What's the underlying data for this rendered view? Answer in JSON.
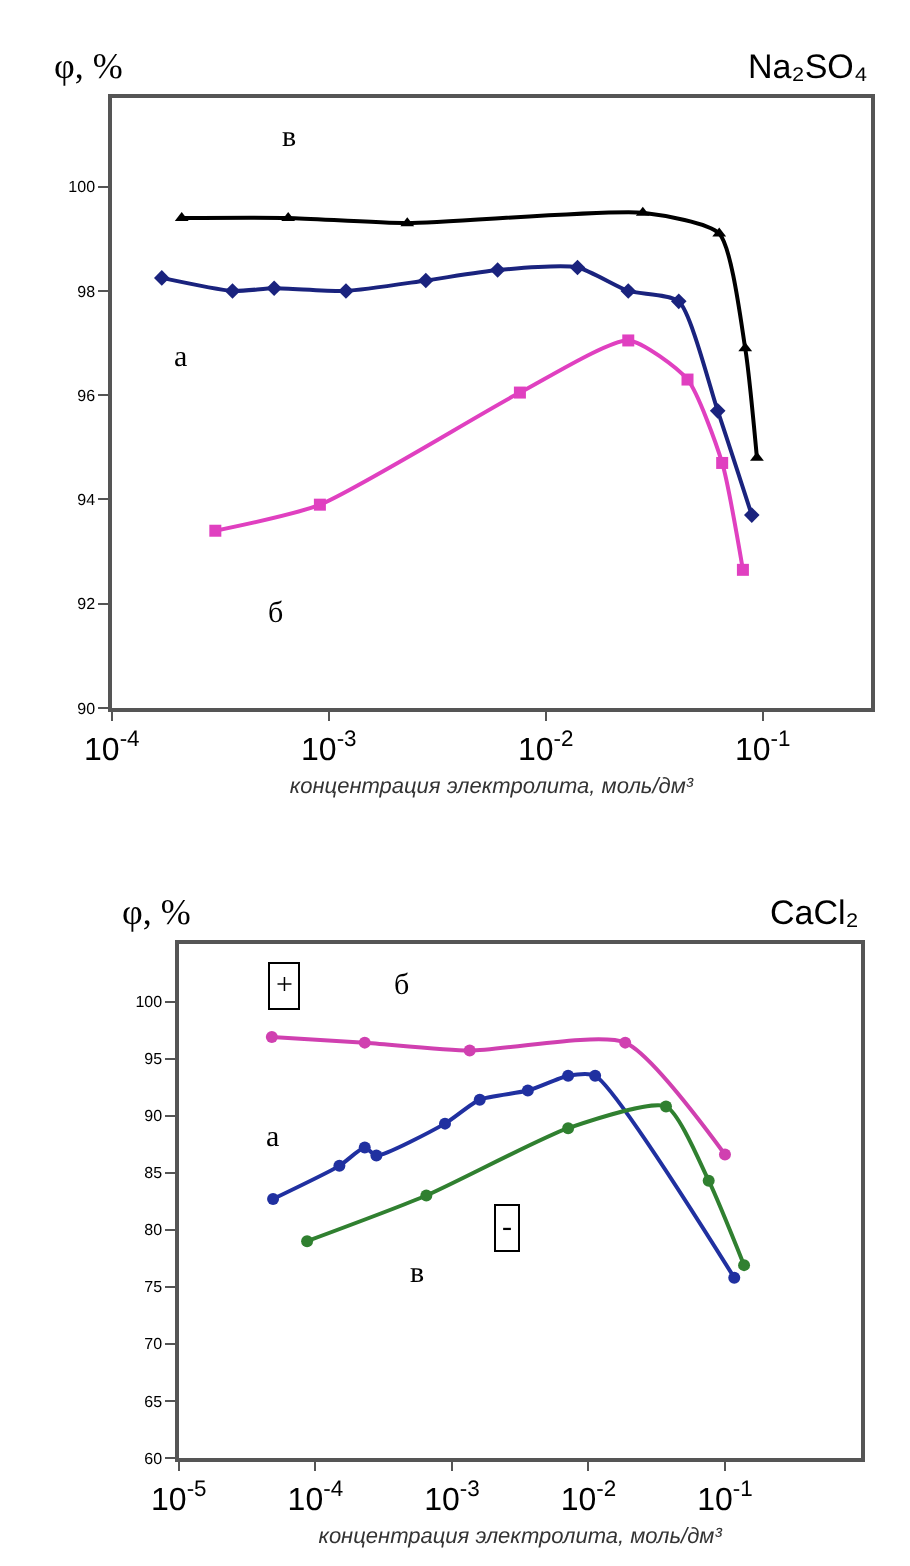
{
  "chart_data": [
    {
      "type": "line",
      "title": "Na₂SO₄",
      "ylabel": "φ, %",
      "xlabel": "концентрация электролита, моль/дм³",
      "log": "x",
      "marker": "circle",
      "xlim": [
        0.0001,
        0.316
      ],
      "xticks": [
        {
          "value": 0.0001,
          "label": "10$^{-4}$"
        },
        {
          "value": 0.001,
          "label": "10$^{-3}$"
        },
        {
          "value": 0.01,
          "label": "10$^{-2}$"
        },
        {
          "value": 0.1,
          "label": "10$^{-1}$"
        }
      ],
      "ylim": [
        90,
        101.7
      ],
      "yticks": [
        90,
        92,
        94,
        96,
        98,
        100
      ],
      "series": [
        {
          "name": "в",
          "color": "#000000",
          "marker": "triangle",
          "x": [
            0.00021,
            0.00065,
            0.0023,
            0.028,
            0.063,
            0.083,
            0.094
          ],
          "values": [
            99.4,
            99.4,
            99.3,
            99.5,
            99.1,
            96.9,
            94.8
          ]
        },
        {
          "name": "а",
          "color": "#1a237e",
          "marker": "diamond",
          "x": [
            0.00017,
            0.00036,
            0.00056,
            0.0012,
            0.0028,
            0.006,
            0.014,
            0.024,
            0.041,
            0.062,
            0.089
          ],
          "values": [
            98.25,
            98.0,
            98.05,
            98.0,
            98.2,
            98.4,
            98.45,
            98.0,
            97.8,
            95.7,
            93.7
          ]
        },
        {
          "name": "б",
          "color": "#e040c0",
          "marker": "square",
          "x": [
            0.0003,
            0.00091,
            0.0076,
            0.024,
            0.045,
            0.065,
            0.081
          ],
          "values": [
            93.4,
            93.9,
            96.05,
            97.05,
            96.3,
            94.7,
            92.65
          ]
        }
      ],
      "legend": false
    },
    {
      "type": "line",
      "title": "CaCl₂",
      "ylabel": "φ, %",
      "xlabel": "концентрация электролита, моль/дм³",
      "log": "x",
      "marker": "circle",
      "xlim": [
        1e-05,
        1
      ],
      "xticks": [
        {
          "value": 1e-05,
          "label": "10$^{-5}$"
        },
        {
          "value": 0.0001,
          "label": "10$^{-4}$"
        },
        {
          "value": 0.001,
          "label": "10$^{-3}$"
        },
        {
          "value": 0.01,
          "label": "10$^{-2}$"
        },
        {
          "value": 0.1,
          "label": "10$^{-1}$"
        }
      ],
      "ylim": [
        60,
        105
      ],
      "yticks": [
        60,
        65,
        70,
        75,
        80,
        85,
        90,
        95,
        100
      ],
      "series": [
        {
          "name": "б",
          "color": "#d040b0",
          "x": [
            4.8e-05,
            0.00023,
            0.00135,
            0.0186,
            0.1
          ],
          "values": [
            96.9,
            96.4,
            95.7,
            96.4,
            86.6
          ]
        },
        {
          "name": "а",
          "color": "#2030a0",
          "x": [
            4.9e-05,
            0.00015,
            0.00023,
            0.00028,
            0.00089,
            0.0016,
            0.0036,
            0.0071,
            0.0112,
            0.117
          ],
          "values": [
            82.7,
            85.6,
            87.2,
            86.5,
            89.3,
            91.4,
            92.2,
            93.5,
            93.5,
            75.8
          ]
        },
        {
          "name": "в",
          "color": "#308030",
          "x": [
            8.7e-05,
            0.00065,
            0.0071,
            0.037,
            0.076,
            0.138
          ],
          "values": [
            79.0,
            83.0,
            88.9,
            90.8,
            84.3,
            76.9
          ]
        }
      ],
      "annotations": [
        "+",
        "-"
      ]
    }
  ]
}
